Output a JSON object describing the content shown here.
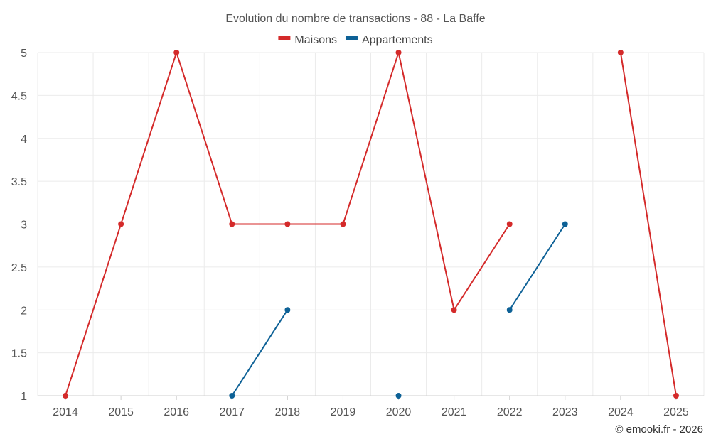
{
  "chart_data": {
    "type": "line",
    "title": "Evolution du nombre de transactions - 88 - La Baffe",
    "xlabel": "",
    "ylabel": "",
    "categories": [
      "2014",
      "2015",
      "2016",
      "2017",
      "2018",
      "2019",
      "2020",
      "2021",
      "2022",
      "2023",
      "2024",
      "2025"
    ],
    "ylim": [
      1,
      5
    ],
    "yticks": [
      1,
      1.5,
      2,
      2.5,
      3,
      3.5,
      4,
      4.5,
      5
    ],
    "ytick_labels": [
      "1",
      "1.5",
      "2",
      "2.5",
      "3",
      "3.5",
      "4",
      "4.5",
      "5"
    ],
    "grid": true,
    "legend_position": "top-center",
    "series": [
      {
        "name": "Maisons",
        "color": "#d42a2a",
        "values": [
          1,
          3,
          5,
          3,
          3,
          3,
          5,
          2,
          3,
          null,
          5,
          1
        ]
      },
      {
        "name": "Appartements",
        "color": "#0d6196",
        "values": [
          null,
          null,
          null,
          1,
          2,
          null,
          1,
          null,
          2,
          3,
          null,
          null
        ]
      }
    ]
  },
  "credit": "© emooki.fr - 2026"
}
